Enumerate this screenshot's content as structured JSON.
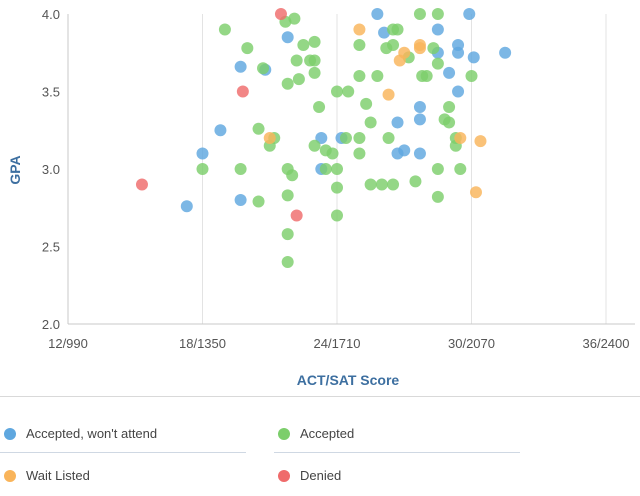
{
  "chart_data": {
    "type": "scatter",
    "xlabel": "ACT/SAT Score",
    "ylabel": "GPA",
    "xlim": [
      12,
      36
    ],
    "ylim": [
      2.0,
      4.0
    ],
    "x_ticks": [
      {
        "value": 12,
        "label": "12/990"
      },
      {
        "value": 18,
        "label": "18/1350"
      },
      {
        "value": 24,
        "label": "24/1710"
      },
      {
        "value": 30,
        "label": "30/2070"
      },
      {
        "value": 36,
        "label": "36/2400"
      }
    ],
    "y_ticks": [
      {
        "value": 2.0,
        "label": "2.0"
      },
      {
        "value": 2.5,
        "label": "2.5"
      },
      {
        "value": 3.0,
        "label": "3.0"
      },
      {
        "value": 3.5,
        "label": "3.5"
      },
      {
        "value": 4.0,
        "label": "4.0"
      }
    ],
    "grid": {
      "vertical": true,
      "horizontal": false
    },
    "series": [
      {
        "name": "Accepted, won't attend",
        "color": "#5fa7df",
        "points": [
          [
            17.3,
            2.76
          ],
          [
            18.0,
            3.1
          ],
          [
            18.8,
            3.25
          ],
          [
            19.7,
            3.66
          ],
          [
            19.7,
            2.8
          ],
          [
            20.8,
            3.64
          ],
          [
            21.8,
            3.85
          ],
          [
            23.3,
            3.2
          ],
          [
            23.3,
            3.0
          ],
          [
            24.2,
            3.2
          ],
          [
            25.8,
            4.0
          ],
          [
            26.1,
            3.88
          ],
          [
            26.7,
            3.3
          ],
          [
            26.7,
            3.1
          ],
          [
            27.0,
            3.12
          ],
          [
            27.7,
            3.4
          ],
          [
            27.7,
            3.32
          ],
          [
            27.7,
            3.1
          ],
          [
            28.5,
            3.9
          ],
          [
            28.5,
            3.75
          ],
          [
            29.0,
            3.62
          ],
          [
            29.4,
            3.8
          ],
          [
            29.4,
            3.75
          ],
          [
            29.4,
            3.5
          ],
          [
            29.9,
            4.0
          ],
          [
            30.1,
            3.72
          ],
          [
            31.5,
            3.75
          ]
        ]
      },
      {
        "name": "Accepted",
        "color": "#7cce6b",
        "points": [
          [
            18.0,
            3.0
          ],
          [
            19.0,
            3.9
          ],
          [
            19.7,
            3.0
          ],
          [
            20.0,
            3.78
          ],
          [
            20.5,
            3.26
          ],
          [
            20.7,
            3.65
          ],
          [
            20.5,
            2.79
          ],
          [
            21.0,
            3.15
          ],
          [
            21.2,
            3.2
          ],
          [
            21.7,
            3.95
          ],
          [
            21.8,
            3.55
          ],
          [
            22.1,
            3.97
          ],
          [
            22.2,
            3.7
          ],
          [
            21.8,
            3.0
          ],
          [
            22.0,
            2.96
          ],
          [
            21.8,
            2.83
          ],
          [
            21.8,
            2.58
          ],
          [
            21.8,
            2.4
          ],
          [
            22.3,
            3.58
          ],
          [
            22.5,
            3.8
          ],
          [
            23.0,
            3.82
          ],
          [
            23.0,
            3.7
          ],
          [
            23.0,
            3.62
          ],
          [
            22.8,
            3.7
          ],
          [
            23.2,
            3.4
          ],
          [
            23.0,
            3.15
          ],
          [
            23.5,
            3.12
          ],
          [
            23.5,
            3.0
          ],
          [
            23.8,
            3.1
          ],
          [
            24.0,
            3.5
          ],
          [
            24.0,
            3.0
          ],
          [
            24.0,
            2.88
          ],
          [
            24.0,
            2.7
          ],
          [
            24.5,
            3.5
          ],
          [
            24.4,
            3.2
          ],
          [
            25.0,
            3.8
          ],
          [
            25.0,
            3.6
          ],
          [
            25.0,
            3.2
          ],
          [
            25.0,
            3.1
          ],
          [
            25.3,
            3.42
          ],
          [
            25.5,
            3.3
          ],
          [
            25.5,
            2.9
          ],
          [
            25.8,
            3.6
          ],
          [
            26.2,
            3.78
          ],
          [
            26.0,
            2.9
          ],
          [
            26.5,
            3.9
          ],
          [
            26.7,
            3.9
          ],
          [
            26.5,
            3.8
          ],
          [
            26.5,
            2.9
          ],
          [
            26.3,
            3.2
          ],
          [
            27.2,
            3.72
          ],
          [
            27.5,
            2.92
          ],
          [
            27.7,
            4.0
          ],
          [
            27.8,
            3.6
          ],
          [
            28.0,
            3.6
          ],
          [
            28.3,
            3.78
          ],
          [
            28.5,
            4.0
          ],
          [
            28.5,
            3.68
          ],
          [
            28.5,
            3.0
          ],
          [
            28.5,
            2.82
          ],
          [
            28.8,
            3.32
          ],
          [
            29.0,
            3.4
          ],
          [
            29.3,
            3.2
          ],
          [
            29.3,
            3.15
          ],
          [
            29.0,
            3.3
          ],
          [
            29.5,
            3.0
          ],
          [
            30.0,
            3.6
          ]
        ]
      },
      {
        "name": "Wait Listed",
        "color": "#f9b45a",
        "points": [
          [
            21.0,
            3.2
          ],
          [
            25.0,
            3.9
          ],
          [
            26.3,
            3.48
          ],
          [
            26.8,
            3.7
          ],
          [
            27.0,
            3.75
          ],
          [
            27.7,
            3.8
          ],
          [
            27.7,
            3.78
          ],
          [
            29.5,
            3.2
          ],
          [
            30.2,
            2.85
          ],
          [
            30.4,
            3.18
          ]
        ]
      },
      {
        "name": "Denied",
        "color": "#ef6b6b",
        "points": [
          [
            15.3,
            2.9
          ],
          [
            19.8,
            3.5
          ],
          [
            21.5,
            4.0
          ],
          [
            22.2,
            2.7
          ]
        ]
      }
    ],
    "legend_position": "bottom"
  }
}
